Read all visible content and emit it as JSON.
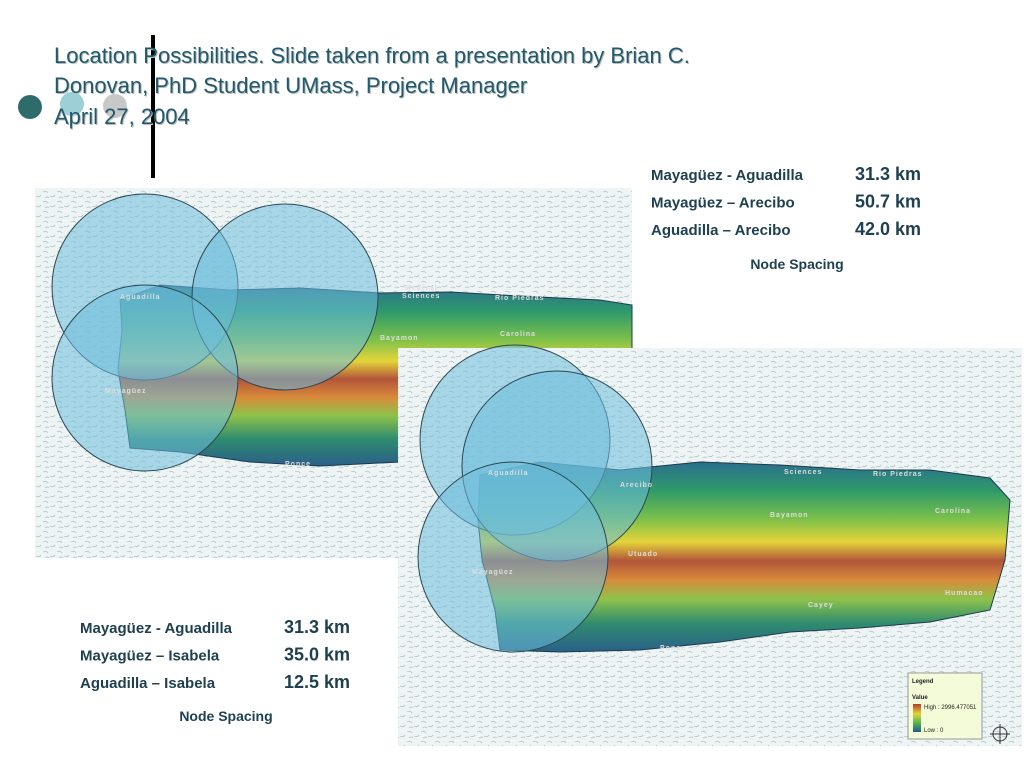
{
  "title": {
    "lines": [
      "Location Possibilities. Slide taken from a presentation by  Brian C.",
      "Donovan, PhD Student UMass, Project Manager",
      "April 27, 2004"
    ]
  },
  "top_table": {
    "rows": [
      [
        "Mayagüez - Aguadilla",
        "31.3 km"
      ],
      [
        "Mayagüez – Arecibo",
        "50.7 km"
      ],
      [
        "Aguadilla – Arecibo",
        "42.0 km"
      ]
    ],
    "caption": "Node Spacing"
  },
  "bottom_table": {
    "rows": [
      [
        "Mayagüez - Aguadilla",
        "31.3 km"
      ],
      [
        "Mayagüez – Isabela",
        "35.0 km"
      ],
      [
        "Aguadilla – Isabela",
        "12.5 km"
      ]
    ],
    "caption": "Node Spacing"
  },
  "map1": {
    "labels": [
      "Aguadilla",
      "Medical",
      "Sciences",
      "Rio Piedras",
      "Carolina",
      "Bayamon",
      "Mayagüez",
      "Ponce"
    ]
  },
  "map2": {
    "labels": [
      "Aguadilla",
      "Medical",
      "Sciences",
      "Rio Piedras",
      "Arecibo",
      "Carolina",
      "Bayamon",
      "Utuado",
      "Mayagüez",
      "Cayey",
      "Humacao",
      "Ponce"
    ],
    "legend": {
      "title": "Legend",
      "subtitle": "Value",
      "high": "High : 2996.477051",
      "low": "Low : 0"
    }
  }
}
